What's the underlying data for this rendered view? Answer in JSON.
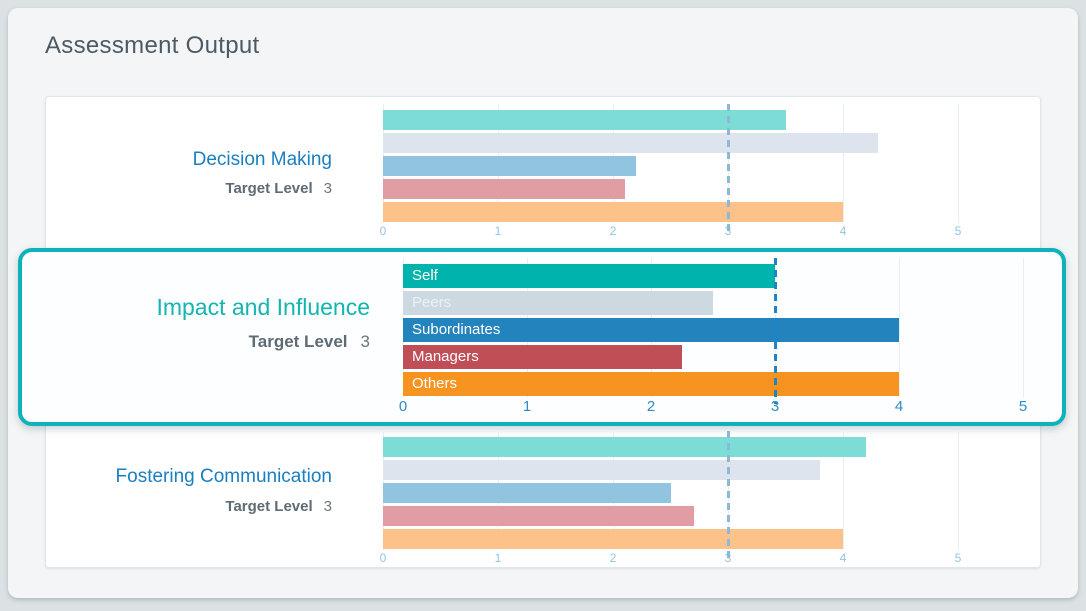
{
  "page": {
    "title": "Assessment Output"
  },
  "categories": [
    "Self",
    "Peers",
    "Subordinates",
    "Managers",
    "Others"
  ],
  "axis_ticks": [
    "0",
    "1",
    "2",
    "3",
    "4",
    "5"
  ],
  "colors": {
    "page_background": "#dce2e4",
    "card_background": "#f4f5f6",
    "panel_background": "#ffffff",
    "highlight_border": "#0db3b9",
    "title_text": "#4d5a64",
    "chart_title_blue": "#1a7fc1",
    "chart_title_teal": "#13b5af",
    "target_text": "#5f6b74",
    "muted_palette": [
      "#7edcd7",
      "#dee4ee",
      "#90c4df",
      "#e09da3",
      "#fcc289"
    ],
    "saturated_palette": [
      "#00b3ad",
      "#ccd9e0",
      "#2383bd",
      "#c04e57",
      "#f79320"
    ],
    "target_line_muted": "#8cb9d8",
    "target_line_strong": "#1d84c6",
    "tick_muted": "#93c4e4",
    "tick_strong": "#2e8cc7",
    "gridline": "#e9eef2"
  },
  "chart_data": [
    {
      "type": "bar",
      "title": "Decision Making",
      "target_label": "Target Level",
      "target_level": 3,
      "categories": [
        "Self",
        "Peers",
        "Subordinates",
        "Managers",
        "Others"
      ],
      "values": [
        3.5,
        4.3,
        2.2,
        2.1,
        4.0
      ],
      "xlim": [
        0,
        5
      ],
      "highlighted": false,
      "show_bar_labels": false,
      "legend_position": "none",
      "grid": true
    },
    {
      "type": "bar",
      "title": "Impact and Influence",
      "target_label": "Target Level",
      "target_level": 3,
      "categories": [
        "Self",
        "Peers",
        "Subordinates",
        "Managers",
        "Others"
      ],
      "values": [
        3.0,
        2.5,
        4.0,
        2.25,
        4.0
      ],
      "xlim": [
        0,
        5
      ],
      "highlighted": true,
      "show_bar_labels": true,
      "legend_position": "in-bar",
      "grid": true
    },
    {
      "type": "bar",
      "title": "Fostering Communication",
      "target_label": "Target Level",
      "target_level": 3,
      "categories": [
        "Self",
        "Peers",
        "Subordinates",
        "Managers",
        "Others"
      ],
      "values": [
        4.2,
        3.8,
        2.5,
        2.7,
        4.0
      ],
      "xlim": [
        0,
        5
      ],
      "highlighted": false,
      "show_bar_labels": false,
      "legend_position": "none",
      "grid": true
    }
  ]
}
